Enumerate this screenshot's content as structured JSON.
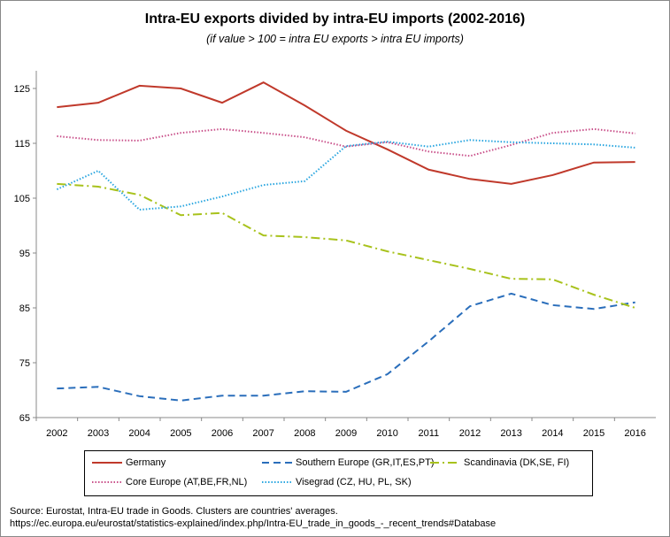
{
  "chart_data": {
    "type": "line",
    "title": "Intra-EU exports divided by intra-EU imports (2002-2016)",
    "subtitle": "(if value > 100 = intra EU exports > intra EU imports)",
    "x": [
      2002,
      2003,
      2004,
      2005,
      2006,
      2007,
      2008,
      2009,
      2010,
      2011,
      2012,
      2013,
      2014,
      2015,
      2016
    ],
    "ylim": [
      65,
      125
    ],
    "yticks": [
      65,
      75,
      85,
      95,
      105,
      115,
      125
    ],
    "grid": false,
    "legend_placement": "bottom",
    "series": [
      {
        "name": "Germany",
        "color": "#c0392b",
        "dash": "",
        "values": [
          121.6,
          122.4,
          125.5,
          125.0,
          122.4,
          126.1,
          121.9,
          117.3,
          113.9,
          110.2,
          108.5,
          107.6,
          109.2,
          111.5,
          111.6
        ]
      },
      {
        "name": "Southern Europe (GR,IT,ES,PT)",
        "color": "#2a6ebb",
        "dash": "8,5",
        "values": [
          70.3,
          70.6,
          68.9,
          68.1,
          69.0,
          69.0,
          69.8,
          69.7,
          72.9,
          78.9,
          85.3,
          87.6,
          85.5,
          84.8,
          86.0
        ]
      },
      {
        "name": "Scandinavia (DK,SE, FI)",
        "color": "#a8c21c",
        "dash": "10,4,2,4",
        "values": [
          107.6,
          107.1,
          105.6,
          101.9,
          102.3,
          98.2,
          97.9,
          97.3,
          95.3,
          93.7,
          92.1,
          90.3,
          90.2,
          87.4,
          85.0
        ]
      },
      {
        "name": "Core Europe (AT,BE,FR,NL)",
        "color": "#c9508a",
        "dash": "1.5,2",
        "values": [
          116.3,
          115.6,
          115.5,
          116.9,
          117.6,
          116.9,
          116.1,
          114.4,
          115.2,
          113.5,
          112.7,
          114.7,
          116.9,
          117.6,
          116.8
        ]
      },
      {
        "name": "Visegrad (CZ, HU, PL, SK)",
        "color": "#2aa6e0",
        "dash": "1.5,2",
        "values": [
          106.6,
          110.0,
          102.9,
          103.5,
          105.3,
          107.4,
          108.1,
          114.5,
          115.3,
          114.4,
          115.6,
          115.2,
          115.0,
          114.8,
          114.2
        ]
      }
    ]
  },
  "source": [
    "Source: Eurostat, Intra-EU trade in Goods. Clusters are countries' averages.",
    "https://ec.europa.eu/eurostat/statistics-explained/index.php/Intra-EU_trade_in_goods_-_recent_trends#Database"
  ]
}
